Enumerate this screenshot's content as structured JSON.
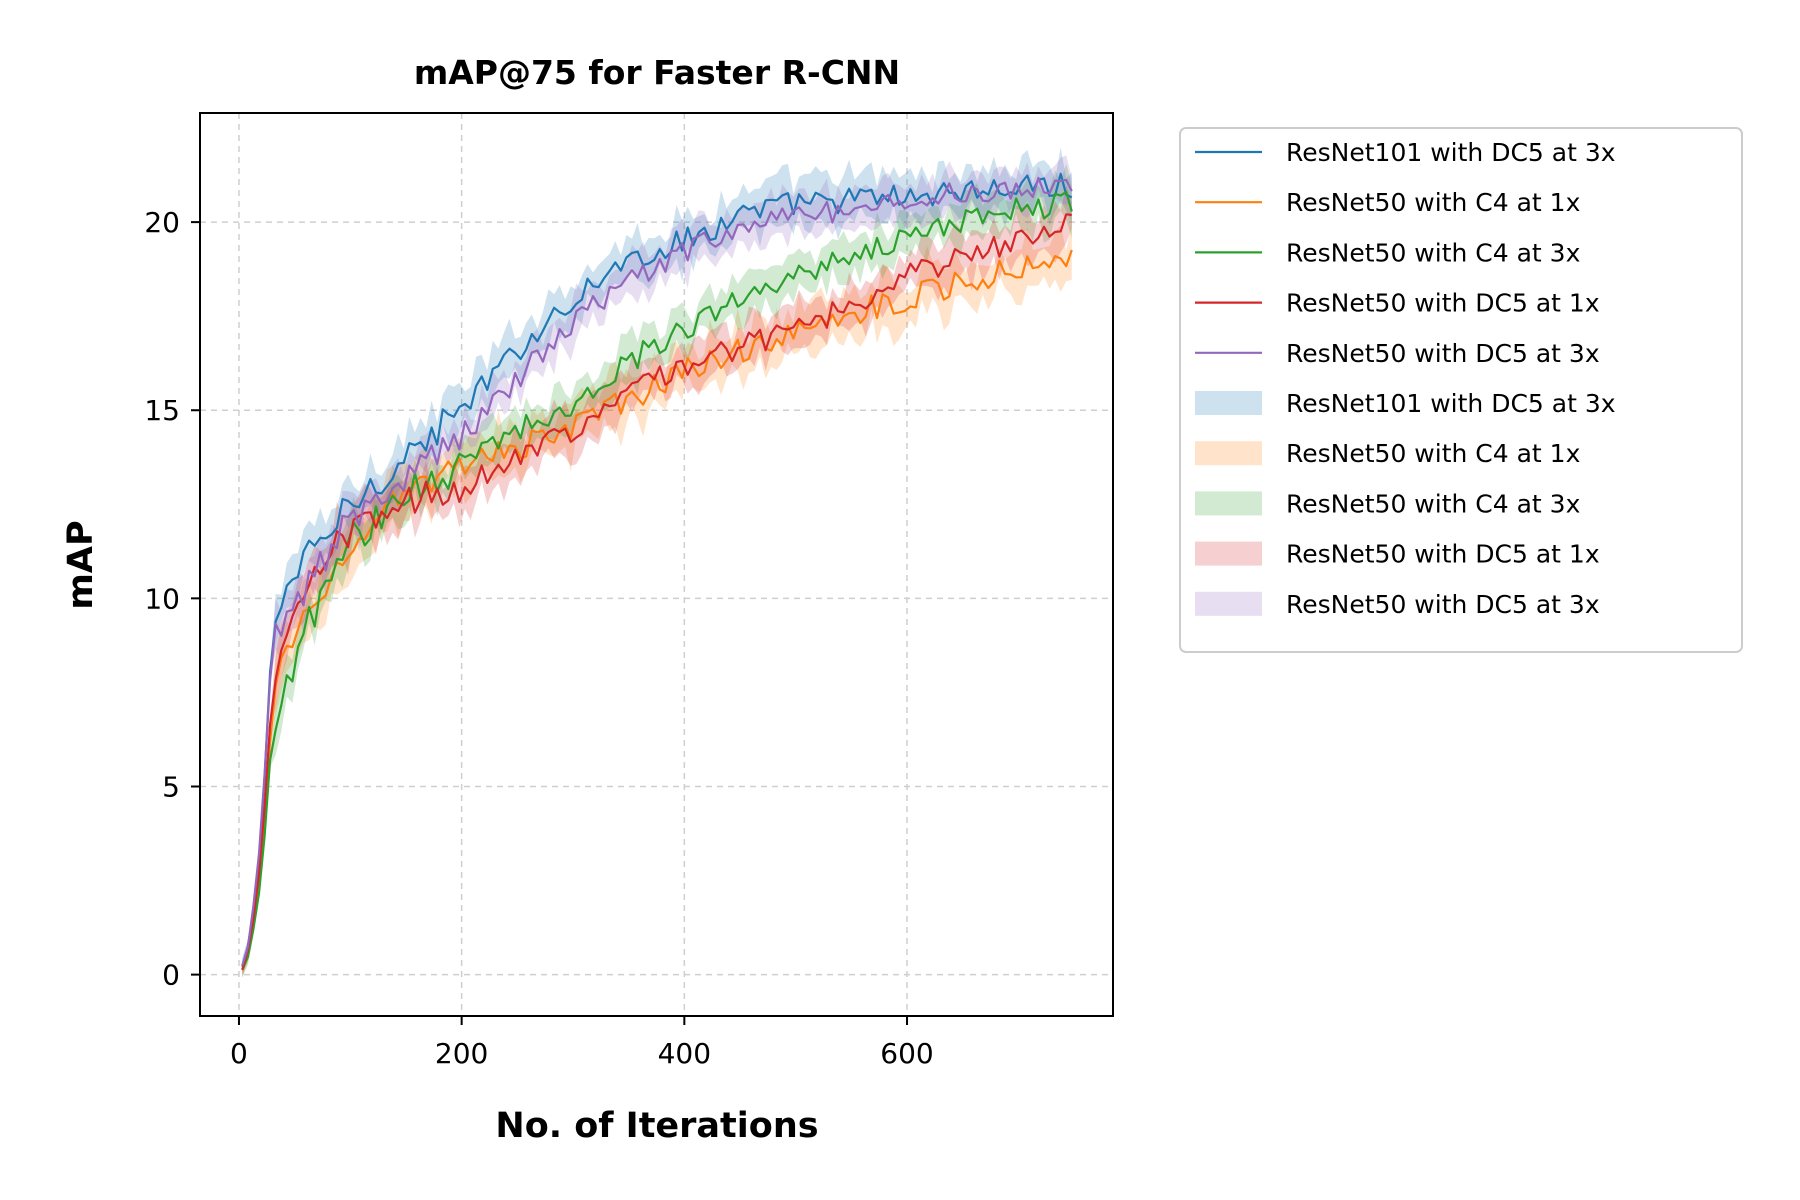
{
  "chart_data": {
    "type": "line",
    "title": "mAP@75 for Faster R-CNN",
    "xlabel": "No. of Iterations",
    "ylabel": "mAP",
    "xlim": [
      -35,
      785
    ],
    "ylim": [
      -1.1,
      22.9
    ],
    "xticks": [
      0,
      200,
      400,
      600
    ],
    "yticks": [
      0,
      5,
      10,
      15,
      20
    ],
    "grid": true,
    "legend_position": "outside-right",
    "series": [
      {
        "name": "ResNet101 with DC5 at 3x",
        "band_label": "ResNet101 with DC5 at 3x",
        "color": "#1f77b4",
        "anchors_x": [
          3,
          10,
          20,
          30,
          40,
          60,
          100,
          150,
          200,
          250,
          300,
          350,
          400,
          450,
          500,
          550,
          600,
          650,
          700,
          750
        ],
        "anchors_y": [
          0.2,
          0.9,
          3.5,
          9.2,
          10.2,
          11.0,
          12.5,
          13.8,
          15.0,
          16.6,
          18.0,
          19.0,
          19.5,
          20.2,
          20.5,
          20.6,
          20.7,
          20.8,
          20.9,
          21.0
        ],
        "band": 0.55
      },
      {
        "name": "ResNet50 with C4 at 1x",
        "band_label": "ResNet50 with C4 at 1x",
        "color": "#ff7f0e",
        "anchors_x": [
          3,
          10,
          20,
          30,
          40,
          60,
          100,
          150,
          200,
          250,
          300,
          350,
          400,
          450,
          500,
          550,
          600,
          650,
          700,
          750
        ],
        "anchors_y": [
          0.1,
          0.7,
          3.0,
          7.0,
          8.5,
          9.6,
          11.5,
          12.7,
          13.5,
          14.0,
          14.6,
          15.3,
          16.0,
          16.6,
          17.1,
          17.6,
          18.0,
          18.4,
          18.8,
          19.2
        ],
        "band": 0.6
      },
      {
        "name": "ResNet50 with C4 at 3x",
        "band_label": "ResNet50 with C4 at 3x",
        "color": "#2ca02c",
        "anchors_x": [
          3,
          10,
          20,
          30,
          40,
          60,
          100,
          150,
          200,
          250,
          300,
          350,
          400,
          450,
          500,
          550,
          600,
          650,
          700,
          750
        ],
        "anchors_y": [
          0.1,
          0.6,
          2.5,
          6.5,
          7.6,
          9.2,
          11.5,
          12.8,
          13.5,
          14.5,
          15.2,
          16.3,
          17.2,
          18.0,
          18.6,
          19.2,
          19.6,
          20.0,
          20.3,
          20.5
        ],
        "band": 0.5
      },
      {
        "name": "ResNet50 with DC5 at 1x",
        "band_label": "ResNet50 with DC5 at 1x",
        "color": "#d62728",
        "anchors_x": [
          3,
          10,
          20,
          30,
          40,
          60,
          100,
          150,
          200,
          250,
          300,
          350,
          400,
          450,
          500,
          550,
          600,
          650,
          700,
          750
        ],
        "anchors_y": [
          0.1,
          0.8,
          3.2,
          7.5,
          8.6,
          10.3,
          11.8,
          12.5,
          13.0,
          13.8,
          14.5,
          15.5,
          16.2,
          16.7,
          17.2,
          17.8,
          18.6,
          19.1,
          19.5,
          20.0
        ],
        "band": 0.55
      },
      {
        "name": "ResNet50 with DC5 at 3x",
        "band_label": "ResNet50 with DC5 at 3x",
        "color": "#9467bd",
        "anchors_x": [
          3,
          10,
          20,
          30,
          40,
          60,
          100,
          150,
          200,
          250,
          300,
          350,
          400,
          450,
          500,
          550,
          600,
          650,
          700,
          750
        ],
        "anchors_y": [
          0.2,
          1.0,
          3.8,
          8.8,
          9.3,
          10.2,
          12.2,
          13.3,
          14.3,
          15.8,
          17.4,
          18.5,
          19.2,
          19.8,
          20.2,
          20.4,
          20.6,
          20.8,
          20.9,
          20.9
        ],
        "band": 0.5
      }
    ]
  }
}
